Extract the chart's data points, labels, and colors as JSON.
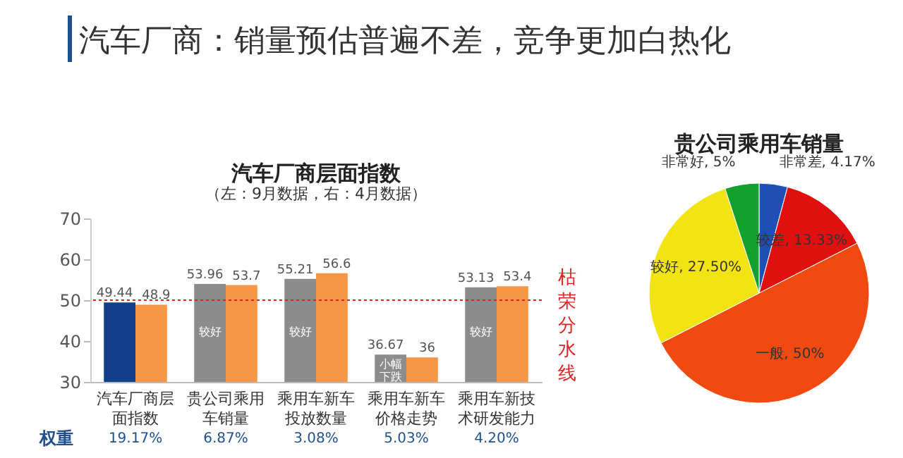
{
  "chart_data": [
    {
      "type": "bar",
      "title": "汽车厂商层面指数",
      "subtitle": "（左：9月数据，右：4月数据）",
      "categories": [
        "汽车厂商层面指数",
        "贵公司乘用车销量",
        "乘用车新车投放数量",
        "乘用车新车价格走势",
        "乘用车新技术研发能力"
      ],
      "series": [
        {
          "colors": [
            "#123f8a",
            "#8c8c8c",
            "#8c8c8c",
            "#8c8c8c",
            "#8c8c8c"
          ],
          "values": [
            49.44,
            53.96,
            55.21,
            36.67,
            53.13
          ]
        },
        {
          "color": "#f79646",
          "values": [
            48.9,
            53.7,
            56.6,
            36,
            53.4
          ]
        }
      ],
      "ylim": [
        30,
        70
      ],
      "yticks": [
        30,
        40,
        50,
        60,
        70
      ],
      "data_labels": true,
      "ref_lines": [
        {
          "axis": "y",
          "value": 50,
          "label": "枯荣分水线",
          "color": "#e02020",
          "line_style": "dotted"
        }
      ],
      "annotations": [
        "汽车厂商：销量预估普遍不差，竞争更加白热化",
        "权重",
        "19.17%",
        "6.87%",
        "3.08%",
        "5.03%",
        "4.20%",
        {
          "text": "较好",
          "x": "贵公司乘用车销量",
          "y": 42
        },
        {
          "text": "较好",
          "x": "乘用车新车投放数量",
          "y": 42
        },
        {
          "text": "小幅下跌",
          "x": "乘用车新车价格走势",
          "y": 34.2
        },
        {
          "text": "较好",
          "x": "乘用车新技术研发能力",
          "y": 42
        }
      ]
    },
    {
      "type": "pie",
      "title": "贵公司乘用车销量",
      "categories": [
        "非常差",
        "较差",
        "一般",
        "较好",
        "非常好"
      ],
      "values": [
        4.17,
        13.33,
        50,
        27.5,
        5
      ],
      "value_labels": [
        "4.17%",
        "13.33%",
        "50%",
        "27.50%",
        "5%"
      ],
      "colors": [
        "#1f4fb5",
        "#e01010",
        "#f04a10",
        "#f2e414",
        "#12a02e"
      ]
    }
  ]
}
